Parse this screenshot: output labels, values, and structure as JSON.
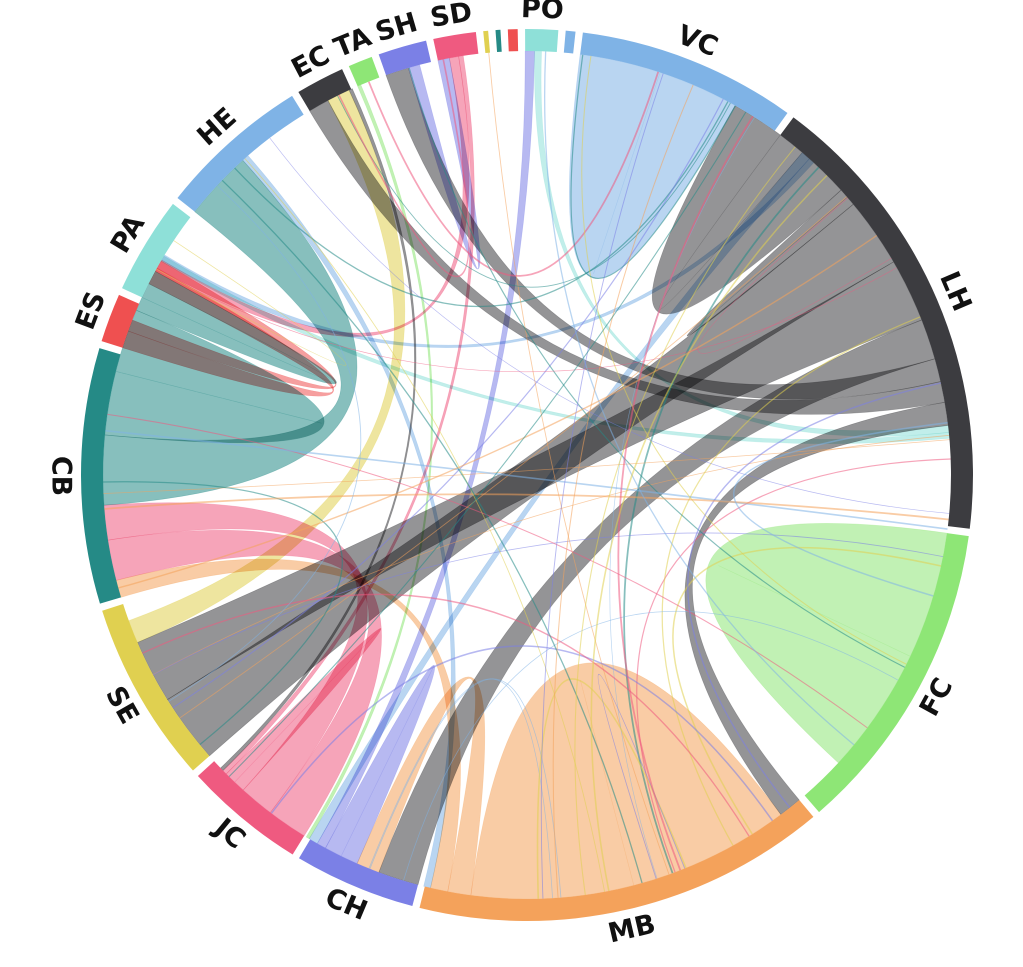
{
  "chart_data": {
    "type": "chord",
    "groups": [
      {
        "label": "VC",
        "value": 180,
        "color": "#7fb3e6"
      },
      {
        "label": "LH",
        "value": 380,
        "color": "#3c3c40"
      },
      {
        "label": "FC",
        "value": 260,
        "color": "#8ee676"
      },
      {
        "label": "MB",
        "value": 340,
        "color": "#f4a25b"
      },
      {
        "label": "CH",
        "value": 100,
        "color": "#7b80e6"
      },
      {
        "label": "JC",
        "value": 100,
        "color": "#ef5a80"
      },
      {
        "label": "SE",
        "value": 150,
        "color": "#e0d050"
      },
      {
        "label": "CB",
        "value": 210,
        "color": "#258a86"
      },
      {
        "label": "ES",
        "value": 40,
        "color": "#ef5050"
      },
      {
        "label": "PA",
        "value": 80,
        "color": "#8ee0d8"
      },
      {
        "label": "HE",
        "value": 125,
        "color": "#7fb3e6"
      },
      {
        "label": "EC",
        "value": 40,
        "color": "#3c3c40"
      },
      {
        "label": "TA",
        "value": 20,
        "color": "#8ee676"
      },
      {
        "label": "SH",
        "value": 40,
        "color": "#7b80e6"
      },
      {
        "label": "SD",
        "value": 35,
        "color": "#ef5a80"
      },
      {
        "label": "",
        "value": 4,
        "color": "#e0d050"
      },
      {
        "label": "",
        "value": 4,
        "color": "#258a86"
      },
      {
        "label": "",
        "value": 8,
        "color": "#ef5050"
      },
      {
        "label": "PO",
        "value": 27,
        "color": "#8ee0d8"
      },
      {
        "label": "",
        "value": 8,
        "color": "#7fb3e6"
      }
    ],
    "links": [
      {
        "source": "VC",
        "target": "VC",
        "value": 70
      },
      {
        "source": "LH",
        "target": "VC",
        "value": 70
      },
      {
        "source": "LH",
        "target": "LH",
        "value": 8
      },
      {
        "source": "LH",
        "target": "SE",
        "value": 60
      },
      {
        "source": "LH",
        "target": "SE",
        "value": 55
      },
      {
        "source": "LH",
        "target": "CH",
        "value": 35
      },
      {
        "source": "LH",
        "target": "SH",
        "value": 20
      },
      {
        "source": "LH",
        "target": "EC",
        "value": 18
      },
      {
        "source": "LH",
        "target": "MB",
        "value": 20
      },
      {
        "source": "FC",
        "target": "FC",
        "value": 110
      },
      {
        "source": "MB",
        "target": "MB",
        "value": 140
      },
      {
        "source": "MB",
        "target": "CH",
        "value": 20
      },
      {
        "source": "MB",
        "target": "CB",
        "value": 15
      },
      {
        "source": "CH",
        "target": "CH",
        "value": 15
      },
      {
        "source": "CH",
        "target": "PO",
        "value": 8
      },
      {
        "source": "JC",
        "target": "CB",
        "value": 35
      },
      {
        "source": "JC",
        "target": "CB",
        "value": 30
      },
      {
        "source": "JC",
        "target": "JC",
        "value": 10
      },
      {
        "source": "SE",
        "target": "EC",
        "value": 20
      },
      {
        "source": "CB",
        "target": "HE",
        "value": 60
      },
      {
        "source": "CB",
        "target": "CB",
        "value": 55
      },
      {
        "source": "CB",
        "target": "PA",
        "value": 25
      },
      {
        "source": "ES",
        "target": "CB",
        "value": 15
      },
      {
        "source": "ES",
        "target": "PA",
        "value": 10
      },
      {
        "source": "SH",
        "target": "SD",
        "value": 10
      },
      {
        "source": "SD",
        "target": "CB",
        "value": 8
      },
      {
        "source": "PO",
        "target": "LH",
        "value": 6
      },
      {
        "source": "VC",
        "target": "CH",
        "value": 8
      },
      {
        "source": "VC",
        "target": "CB",
        "value": 5
      },
      {
        "source": "HE",
        "target": "MB",
        "value": 6
      },
      {
        "source": "PA",
        "target": "LH",
        "value": 5
      },
      {
        "source": "SD",
        "target": "JC",
        "value": 4
      },
      {
        "source": "TA",
        "target": "CH",
        "value": 3
      },
      {
        "source": "EC",
        "target": "JC",
        "value": 3
      }
    ]
  }
}
